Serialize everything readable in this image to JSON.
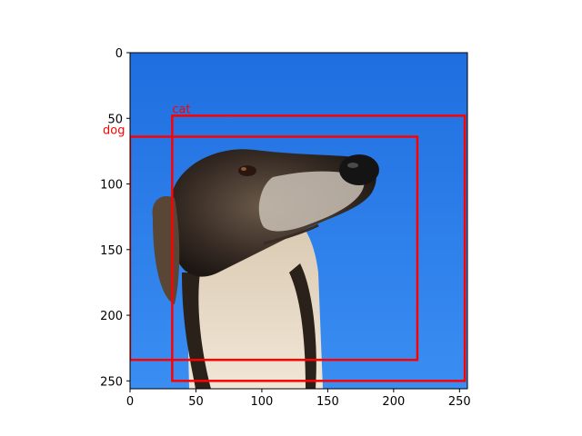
{
  "image": {
    "description_icon": "dog-photo",
    "sky_color_top": "#1f6ee0",
    "sky_color_bottom": "#3a8ef2",
    "size": [
      256,
      256
    ]
  },
  "axes": {
    "xlim": [
      0,
      256
    ],
    "ylim": [
      256,
      0
    ],
    "xticks": [
      0,
      50,
      100,
      150,
      200,
      250
    ],
    "yticks": [
      0,
      50,
      100,
      150,
      200,
      250
    ]
  },
  "boxes": [
    {
      "label": "cat",
      "x1": 32,
      "y1": 48,
      "x2": 254,
      "y2": 250,
      "color": "#ff0000"
    },
    {
      "label": "dog",
      "x1": 0,
      "y1": 64,
      "x2": 218,
      "y2": 234,
      "color": "#ff0000"
    }
  ]
}
